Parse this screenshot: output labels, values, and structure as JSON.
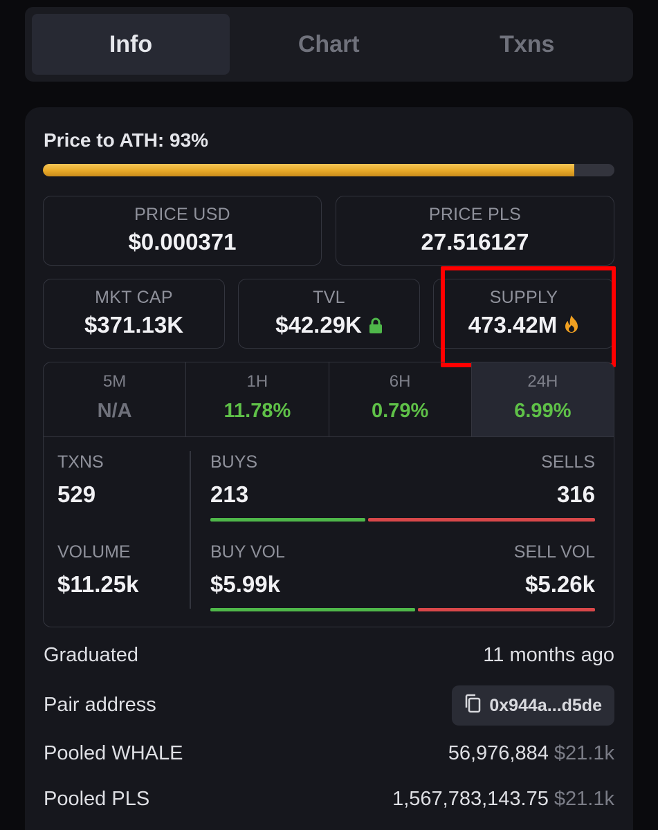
{
  "tabs": [
    {
      "label": "Info",
      "active": true
    },
    {
      "label": "Chart",
      "active": false
    },
    {
      "label": "Txns",
      "active": false
    }
  ],
  "ath": {
    "title": "Price to ATH: 93%",
    "progress": 0.93,
    "color": "#e8a928"
  },
  "prices": {
    "usd_label": "PRICE USD",
    "usd_value": "$0.000371",
    "pls_label": "PRICE PLS",
    "pls_value": "27.516127"
  },
  "metrics": {
    "mktcap_label": "MKT CAP",
    "mktcap_value": "$371.13K",
    "tvl_label": "TVL",
    "tvl_value": "$42.29K",
    "tvl_icon": "lock-icon",
    "supply_label": "SUPPLY",
    "supply_value": "473.42M",
    "supply_icon": "fire-icon"
  },
  "timeframes": [
    {
      "label": "5M",
      "value": "N/A",
      "kind": "na"
    },
    {
      "label": "1H",
      "value": "11.78%",
      "kind": "pos"
    },
    {
      "label": "6H",
      "value": "0.79%",
      "kind": "pos"
    },
    {
      "label": "24H",
      "value": "6.99%",
      "kind": "pos",
      "selected": true
    }
  ],
  "stats": {
    "txns_label": "TXNS",
    "txns_value": "529",
    "buys_label": "BUYS",
    "buys_value": "213",
    "sells_label": "SELLS",
    "sells_value": "316",
    "buy_share": 0.403,
    "volume_label": "VOLUME",
    "volume_value": "$11.25k",
    "buyvol_label": "BUY VOL",
    "buyvol_value": "$5.99k",
    "sellvol_label": "SELL VOL",
    "sellvol_value": "$5.26k",
    "buyvol_share": 0.532
  },
  "info": {
    "graduated_label": "Graduated",
    "graduated_value": "11 months ago",
    "pair_label": "Pair address",
    "pair_value": "0x944a...d5de",
    "pair_icon": "copy-icon",
    "pooled_whale_label": "Pooled WHALE",
    "pooled_whale_amount": "56,976,884",
    "pooled_whale_usd": "$21.1k",
    "pooled_pls_label": "Pooled PLS",
    "pooled_pls_amount": "1,567,783,143.75",
    "pooled_pls_usd": "$21.1k"
  },
  "colors": {
    "positive": "#5fc148",
    "negative": "#d9484a",
    "highlight": "#ff0000"
  }
}
